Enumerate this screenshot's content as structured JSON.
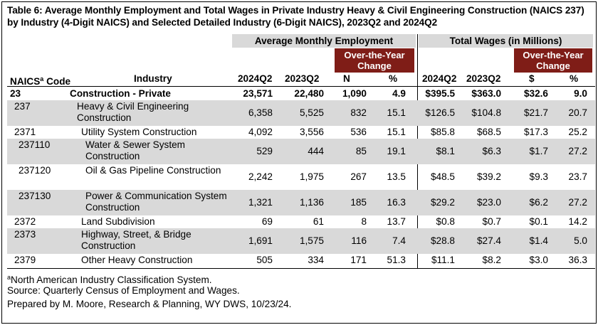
{
  "title": "Table 6: Average Monthly Employment and Total Wages in Private Industry Heavy & Civil Engineering Construction (NAICS 237) by Industry (4-Digit NAICS) and Selected Detailed Industry (6-Digit NAICS), 2023Q2 and 2024Q2",
  "groups": {
    "employment": "Average Monthly Employment",
    "wages": "Total Wages (in Millions)",
    "change": "Over-the-Year Change"
  },
  "columns": {
    "naics_prefix": "NAICS",
    "naics_sup": "a",
    "naics_suffix": " Code",
    "industry": "Industry",
    "emp_2024": "2024Q2",
    "emp_2023": "2023Q2",
    "emp_n": "N",
    "emp_pct": "%",
    "wag_2024": "2024Q2",
    "wag_2023": "2023Q2",
    "wag_dollar": "$",
    "wag_pct": "%"
  },
  "rows": [
    {
      "code": "23",
      "industry": "Construction - Private",
      "e24": "23,571",
      "e23": "22,480",
      "en": "1,090",
      "ep": "4.9",
      "w24": "$395.5",
      "w23": "$363.0",
      "wd": "$32.6",
      "wp": "9.0"
    },
    {
      "code": "237",
      "industry": "Heavy & Civil Engineering Construction",
      "e24": "6,358",
      "e23": "5,525",
      "en": "832",
      "ep": "15.1",
      "w24": "$126.5",
      "w23": "$104.8",
      "wd": "$21.7",
      "wp": "20.7"
    },
    {
      "code": "2371",
      "industry": "Utility System Construction",
      "e24": "4,092",
      "e23": "3,556",
      "en": "536",
      "ep": "15.1",
      "w24": "$85.8",
      "w23": "$68.5",
      "wd": "$17.3",
      "wp": "25.2"
    },
    {
      "code": "237110",
      "industry": "Water & Sewer System Construction",
      "e24": "529",
      "e23": "444",
      "en": "85",
      "ep": "19.1",
      "w24": "$8.1",
      "w23": "$6.3",
      "wd": "$1.7",
      "wp": "27.2"
    },
    {
      "code": "237120",
      "industry": "Oil & Gas Pipeline Construction",
      "e24": "2,242",
      "e23": "1,975",
      "en": "267",
      "ep": "13.5",
      "w24": "$48.5",
      "w23": "$39.2",
      "wd": "$9.3",
      "wp": "23.7"
    },
    {
      "code": "237130",
      "industry": "Power & Communication System Construction",
      "e24": "1,321",
      "e23": "1,136",
      "en": "185",
      "ep": "16.3",
      "w24": "$29.2",
      "w23": "$23.0",
      "wd": "$6.2",
      "wp": "27.2"
    },
    {
      "code": "2372",
      "industry": "Land Subdivision",
      "e24": "69",
      "e23": "61",
      "en": "8",
      "ep": "13.7",
      "w24": "$0.8",
      "w23": "$0.7",
      "wd": "$0.1",
      "wp": "14.2"
    },
    {
      "code": "2373",
      "industry": "Highway, Street, & Bridge Construction",
      "e24": "1,691",
      "e23": "1,575",
      "en": "116",
      "ep": "7.4",
      "w24": "$28.8",
      "w23": "$27.4",
      "wd": "$1.4",
      "wp": "5.0"
    },
    {
      "code": "2379",
      "industry": "Other Heavy Construction",
      "e24": "505",
      "e23": "334",
      "en": "171",
      "ep": "51.3",
      "w24": "$11.1",
      "w23": "$8.2",
      "wd": "$3.0",
      "wp": "36.3"
    }
  ],
  "notes": {
    "footnote_sup": "a",
    "footnote_text": "North American Industry Classification System.",
    "source": "Source: Quarterly Census of Employment and Wages.",
    "prepared": "Prepared by M. Moore, Research & Planning, WY DWS, 10/23/24."
  }
}
